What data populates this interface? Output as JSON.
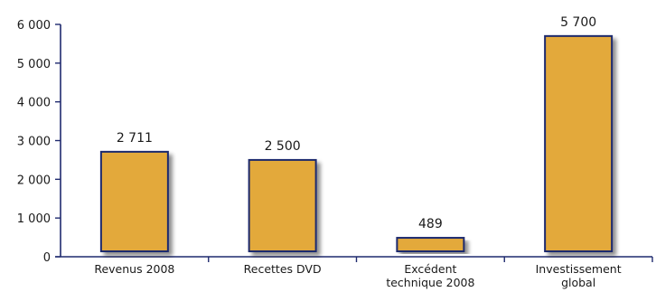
{
  "chart_data": {
    "type": "bar",
    "title": "",
    "xlabel": "",
    "ylabel": "",
    "categories": [
      [
        "Revenus 2008"
      ],
      [
        "Recettes DVD"
      ],
      [
        "Excédent",
        "technique 2008"
      ],
      [
        "Investissement",
        "global"
      ]
    ],
    "values": [
      2711,
      2500,
      489,
      5700
    ],
    "value_labels": [
      "2 711",
      "2 500",
      "489",
      "5 700"
    ],
    "ylim": [
      0,
      6000
    ],
    "yticks": [
      0,
      1000,
      2000,
      3000,
      4000,
      5000,
      6000
    ],
    "ytick_labels": [
      "0",
      "1 000",
      "2 000",
      "3 000",
      "4 000",
      "5 000",
      "6 000"
    ],
    "grid": false,
    "legend": "none",
    "colors": {
      "bar_fill": "#E3A93A",
      "bar_stroke": "#1F2A6E",
      "axis": "#1F2A6E",
      "shadow": "#9a9a9a"
    }
  }
}
